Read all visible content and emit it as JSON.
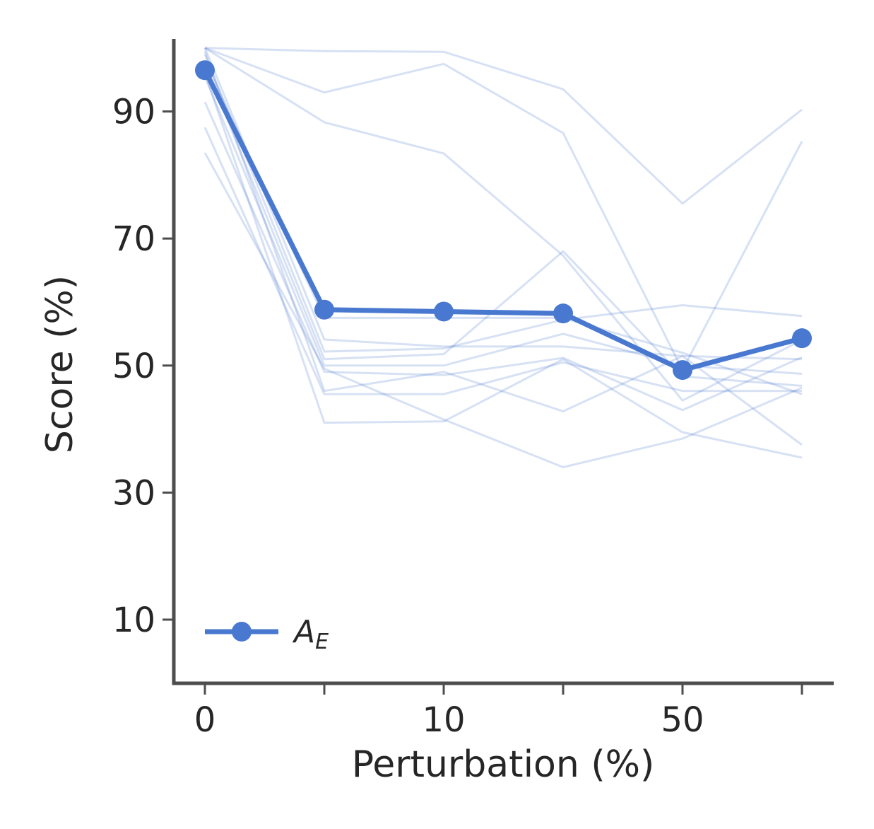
{
  "chart_data": {
    "type": "line",
    "x_categories": [
      "0",
      "",
      "10",
      "",
      "50",
      ""
    ],
    "xlabel": "Perturbation (%)",
    "ylabel": "Score (%)",
    "y_ticks": [
      10,
      30,
      50,
      70,
      90
    ],
    "ylim": [
      0,
      101
    ],
    "grid": false,
    "legend": {
      "position": "bottom-left",
      "label_main": "A",
      "label_sub": "E"
    },
    "colors": {
      "main": "#4878CF",
      "background_lines": "#4878CF",
      "axis": "#4d4d4d"
    },
    "main_series": {
      "name": "A_E",
      "values": [
        96.5,
        58.8,
        58.5,
        58.2,
        49.3,
        54.3
      ]
    },
    "background_series": [
      {
        "values": [
          100,
          99.5,
          99.4,
          93.5,
          75.5,
          90.3
        ]
      },
      {
        "values": [
          100,
          93.0,
          97.5,
          86.6,
          49.3,
          85.3
        ]
      },
      {
        "values": [
          100,
          88.3,
          83.4,
          67.3,
          44.5,
          54.0
        ]
      },
      {
        "values": [
          100,
          54.1,
          53.0,
          53.0,
          51.5,
          51.0
        ]
      },
      {
        "values": [
          99.0,
          52.2,
          52.7,
          57.2,
          59.5,
          57.8
        ]
      },
      {
        "values": [
          97.5,
          51.0,
          51.8,
          68.0,
          48.3,
          46.8
        ]
      },
      {
        "values": [
          95.5,
          50.0,
          50.0,
          55.0,
          50.0,
          48.7
        ]
      },
      {
        "values": [
          91.5,
          49.0,
          48.5,
          51.2,
          43.0,
          51.3
        ]
      },
      {
        "values": [
          87.5,
          45.5,
          45.5,
          50.5,
          46.0,
          46.0
        ]
      },
      {
        "values": [
          83.5,
          49.5,
          41.5,
          34.0,
          38.5,
          46.5
        ]
      },
      {
        "values": [
          96.0,
          41.0,
          41.2,
          51.0,
          39.5,
          35.5
        ]
      },
      {
        "values": [
          98.0,
          57.5,
          57.5,
          57.5,
          52.0,
          45.5
        ]
      },
      {
        "values": [
          99.5,
          46.0,
          49.0,
          42.8,
          51.5,
          37.5
        ]
      }
    ]
  }
}
